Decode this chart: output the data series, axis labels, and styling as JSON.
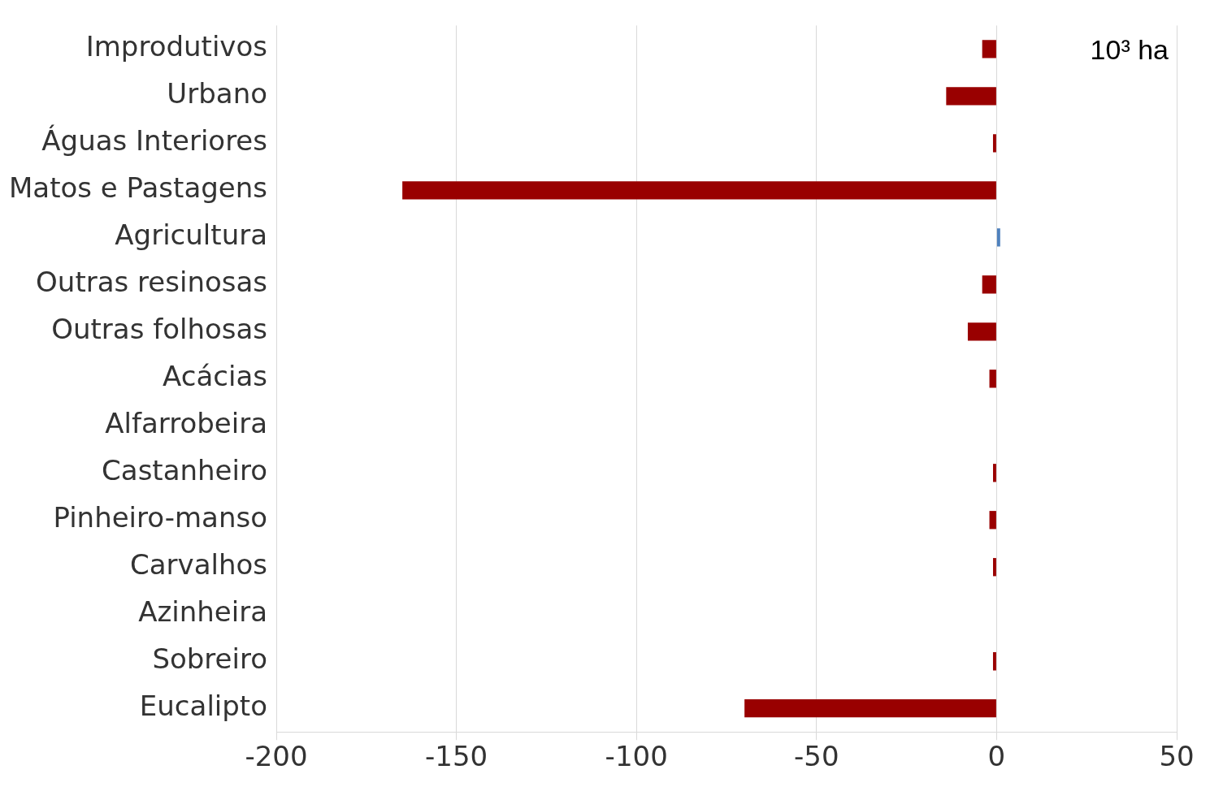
{
  "chart_data": {
    "type": "bar",
    "orientation": "horizontal",
    "categories": [
      "Improdutivos",
      "Urbano",
      "Águas Interiores",
      "Matos e Pastagens",
      "Agricultura",
      "Outras resinosas",
      "Outras folhosas",
      "Acácias",
      "Alfarrobeira",
      "Castanheiro",
      "Pinheiro-manso",
      "Carvalhos",
      "Azinheira",
      "Sobreiro",
      "Eucalipto"
    ],
    "values": [
      -4,
      -14,
      -1,
      -165,
      1,
      -4,
      -8,
      -2,
      0,
      -1,
      -2,
      -1,
      0,
      -1,
      -70
    ],
    "colors": [
      "#990000",
      "#990000",
      "#990000",
      "#990000",
      "#4f81bd",
      "#990000",
      "#990000",
      "#990000",
      "#990000",
      "#990000",
      "#990000",
      "#990000",
      "#990000",
      "#990000",
      "#990000"
    ],
    "xlim": [
      -200,
      50
    ],
    "xticks": [
      -200,
      -150,
      -100,
      -50,
      0,
      50
    ],
    "grid": "x",
    "legend": false,
    "annotations": [
      "10³ ha"
    ]
  }
}
